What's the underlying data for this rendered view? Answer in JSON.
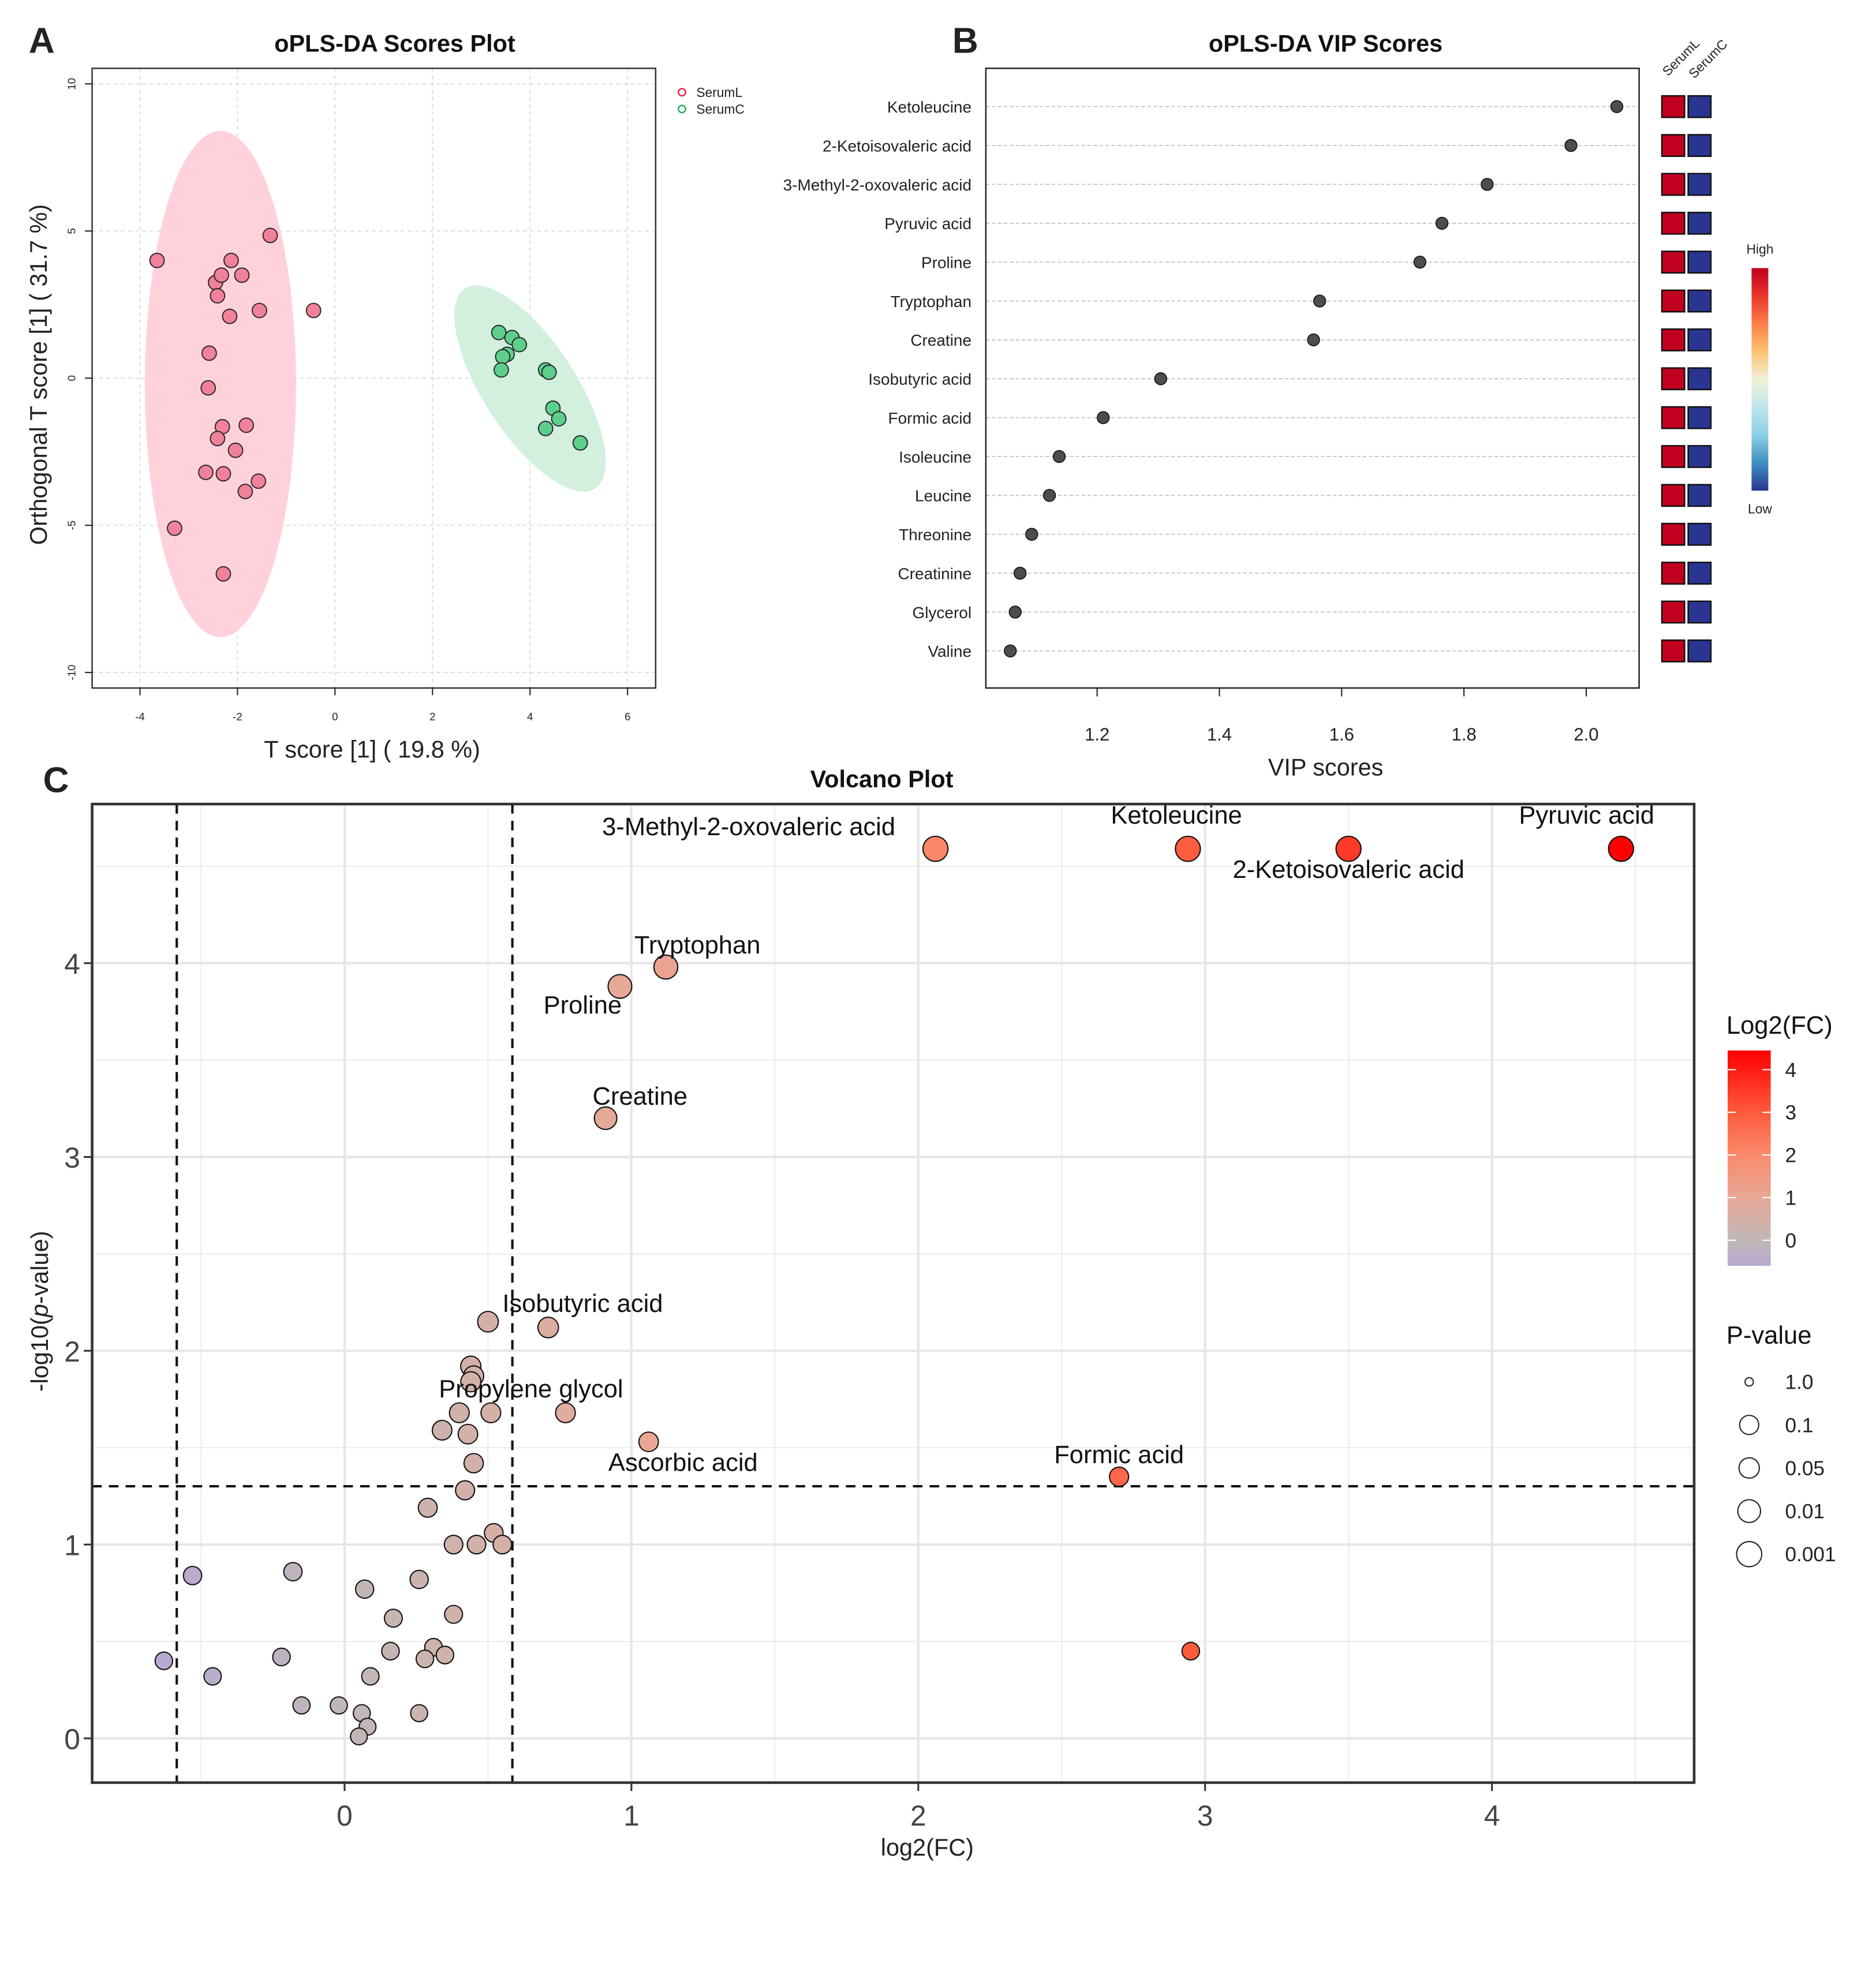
{
  "figure": {
    "panels": [
      "A",
      "B",
      "C"
    ]
  },
  "chart_data": [
    {
      "id": "scores",
      "panel": "A",
      "type": "scatter",
      "title": "oPLS-DA Scores Plot",
      "xlabel": "T score [1] ( 19.8 %)",
      "ylabel": "Orthogonal T score [1] ( 31.7 %)",
      "xlim": [
        -5.0,
        6.6
      ],
      "ylim": [
        -11.0,
        10.5
      ],
      "xticks": [
        -4,
        -2,
        0,
        2,
        4,
        6
      ],
      "yticks": [
        -10,
        -5,
        0,
        5,
        10
      ],
      "grid": true,
      "legend_position": "top-right-outside",
      "series": [
        {
          "name": "SerumL",
          "color": "#f0819a",
          "legend_color": "#e8274f",
          "ellipse_color": "#ffd1db",
          "ellipse": {
            "cx": -2.35,
            "cy": -0.2,
            "rx": 1.55,
            "ry": 8.6,
            "angle": 0
          },
          "points": [
            [
              -3.65,
              4.0
            ],
            [
              -2.13,
              4.0
            ],
            [
              -1.33,
              4.85
            ],
            [
              -2.45,
              3.25
            ],
            [
              -2.33,
              3.5
            ],
            [
              -1.91,
              3.5
            ],
            [
              -2.41,
              2.8
            ],
            [
              -2.16,
              2.1
            ],
            [
              -1.55,
              2.3
            ],
            [
              -0.44,
              2.3
            ],
            [
              -2.58,
              0.85
            ],
            [
              -2.6,
              -0.33
            ],
            [
              -2.31,
              -1.65
            ],
            [
              -1.82,
              -1.6
            ],
            [
              -2.41,
              -2.05
            ],
            [
              -2.04,
              -2.45
            ],
            [
              -2.65,
              -3.2
            ],
            [
              -2.29,
              -3.25
            ],
            [
              -1.57,
              -3.5
            ],
            [
              -1.84,
              -3.85
            ],
            [
              -3.29,
              -5.1
            ],
            [
              -2.29,
              -6.65
            ]
          ]
        },
        {
          "name": "SerumC",
          "color": "#5ccf8a",
          "legend_color": "#1fb25a",
          "ellipse_color": "#d2f0dd",
          "ellipse": {
            "cx": 4.0,
            "cy": -0.35,
            "rx": 0.95,
            "ry": 4.05,
            "angle": -33
          },
          "points": [
            [
              3.36,
              1.55
            ],
            [
              3.63,
              1.38
            ],
            [
              3.78,
              1.14
            ],
            [
              3.53,
              0.81
            ],
            [
              3.44,
              0.73
            ],
            [
              3.41,
              0.28
            ],
            [
              4.32,
              0.28
            ],
            [
              4.39,
              0.2
            ],
            [
              4.47,
              -1.02
            ],
            [
              4.59,
              -1.38
            ],
            [
              4.32,
              -1.71
            ],
            [
              5.03,
              -2.2
            ]
          ]
        }
      ]
    },
    {
      "id": "vip",
      "panel": "B",
      "type": "scatter",
      "title": "oPLS-DA VIP Scores",
      "xlabel": "VIP scores",
      "ylabel": "",
      "xlim": [
        1.015,
        2.083
      ],
      "xticks": [
        "1.2",
        "1.4",
        "1.6",
        "1.8",
        "2.0"
      ],
      "grid": "horizontal-dashed",
      "categories": [
        "Ketoleucine",
        "2-Ketoisovaleric acid",
        "3-Methyl-2-oxovaleric acid",
        "Pyruvic acid",
        "Proline",
        "Tryptophan",
        "Creatine",
        "Isobutyric acid",
        "Formic acid",
        "Isoleucine",
        "Leucine",
        "Threonine",
        "Creatinine",
        "Glycerol",
        "Valine"
      ],
      "values": [
        2.05,
        1.975,
        1.838,
        1.764,
        1.728,
        1.564,
        1.554,
        1.304,
        1.21,
        1.138,
        1.122,
        1.093,
        1.074,
        1.066,
        1.058
      ],
      "point_color": "#4d4d4d",
      "heatmap": {
        "columns": [
          "SerumL",
          "SerumC"
        ],
        "values": [
          [
            "High",
            "Low"
          ],
          [
            "High",
            "Low"
          ],
          [
            "High",
            "Low"
          ],
          [
            "High",
            "Low"
          ],
          [
            "High",
            "Low"
          ],
          [
            "High",
            "Low"
          ],
          [
            "High",
            "Low"
          ],
          [
            "High",
            "Low"
          ],
          [
            "High",
            "Low"
          ],
          [
            "High",
            "Low"
          ],
          [
            "High",
            "Low"
          ],
          [
            "High",
            "Low"
          ],
          [
            "High",
            "Low"
          ],
          [
            "High",
            "Low"
          ],
          [
            "High",
            "Low"
          ]
        ],
        "high_color": "#c10020",
        "low_color": "#2b3591"
      },
      "colorbar": {
        "high_label": "High",
        "low_label": "Low",
        "stops": [
          "#c10020",
          "#e8352a",
          "#fc7f48",
          "#fdc371",
          "#f2efd8",
          "#bfe6ef",
          "#8ecfe4",
          "#3f8fc4",
          "#2b3591"
        ]
      }
    },
    {
      "id": "volcano",
      "panel": "C",
      "type": "scatter",
      "title": "Volcano Plot",
      "xlabel": "log2(FC)",
      "ylabel": "-log10(p-value)",
      "ylabel_italic_part": "p",
      "xlim": [
        -0.88,
        4.7
      ],
      "ylim": [
        -0.23,
        4.82
      ],
      "xticks": [
        0,
        1,
        2,
        3,
        4
      ],
      "yticks": [
        0,
        1,
        2,
        3,
        4
      ],
      "grid": true,
      "thresholds": {
        "x": [
          -0.585,
          0.585
        ],
        "y": 1.301
      },
      "color_legend": {
        "title": "Log2(FC)",
        "ticks": [
          "4",
          "3",
          "2",
          "1",
          "0"
        ],
        "range": [
          -0.6,
          4.45
        ],
        "stops": [
          {
            "v": -0.6,
            "c": "#b9a8cf"
          },
          {
            "v": 0,
            "c": "#c0b8b8"
          },
          {
            "v": 1,
            "c": "#e8a896"
          },
          {
            "v": 2,
            "c": "#fa8a6c"
          },
          {
            "v": 3,
            "c": "#ff5a3c"
          },
          {
            "v": 4.45,
            "c": "#ff0000"
          }
        ]
      },
      "size_legend": {
        "title": "P-value",
        "labels": [
          "1.0",
          "0.1",
          "0.05",
          "0.01",
          "0.001"
        ]
      },
      "points": [
        {
          "x": 2.06,
          "y": 4.59,
          "label": "3-Methyl-2-oxovaleric acid",
          "lx": 1.92,
          "ly": 4.66,
          "anchor": "end"
        },
        {
          "x": 2.94,
          "y": 4.59,
          "label": "Ketoleucine",
          "lx": 2.9,
          "ly": 4.72,
          "anchor": "middle"
        },
        {
          "x": 3.5,
          "y": 4.59,
          "label": "2-Ketoisovaleric acid",
          "lx": 3.5,
          "ly": 4.44,
          "anchor": "middle"
        },
        {
          "x": 4.45,
          "y": 4.59,
          "label": "Pyruvic acid",
          "lx": 4.33,
          "ly": 4.72,
          "anchor": "middle"
        },
        {
          "x": 1.12,
          "y": 3.98,
          "label": "Tryptophan",
          "lx": 1.23,
          "ly": 4.05,
          "anchor": "middle"
        },
        {
          "x": 0.96,
          "y": 3.88,
          "label": "Proline",
          "lx": 0.83,
          "ly": 3.74,
          "anchor": "middle"
        },
        {
          "x": 0.91,
          "y": 3.2,
          "label": "Creatine",
          "lx": 1.03,
          "ly": 3.27,
          "anchor": "middle"
        },
        {
          "x": 0.5,
          "y": 2.15,
          "label": "Isobutyric acid",
          "lx": 0.83,
          "ly": 2.2,
          "anchor": "middle"
        },
        {
          "x": 0.71,
          "y": 2.12,
          "label": "",
          "lx": 0,
          "ly": 0,
          "anchor": "middle"
        },
        {
          "x": 0.44,
          "y": 1.92,
          "label": "",
          "lx": 0,
          "ly": 0,
          "anchor": "middle"
        },
        {
          "x": 0.45,
          "y": 1.87,
          "label": "",
          "lx": 0,
          "ly": 0,
          "anchor": "middle"
        },
        {
          "x": 0.44,
          "y": 1.84,
          "label": "",
          "lx": 0,
          "ly": 0,
          "anchor": "middle"
        },
        {
          "x": 0.4,
          "y": 1.68,
          "label": "Propylene glycol",
          "lx": 0.65,
          "ly": 1.76,
          "anchor": "middle"
        },
        {
          "x": 0.51,
          "y": 1.68,
          "label": "",
          "lx": 0,
          "ly": 0,
          "anchor": "middle"
        },
        {
          "x": 0.77,
          "y": 1.68,
          "label": "",
          "lx": 0,
          "ly": 0,
          "anchor": "middle"
        },
        {
          "x": 0.34,
          "y": 1.59,
          "label": "",
          "lx": 0,
          "ly": 0,
          "anchor": "middle"
        },
        {
          "x": 0.43,
          "y": 1.57,
          "label": "",
          "lx": 0,
          "ly": 0,
          "anchor": "middle"
        },
        {
          "x": 1.06,
          "y": 1.53,
          "label": "Ascorbic acid",
          "lx": 1.18,
          "ly": 1.38,
          "anchor": "middle"
        },
        {
          "x": 0.45,
          "y": 1.42,
          "label": "",
          "lx": 0,
          "ly": 0,
          "anchor": "middle"
        },
        {
          "x": 0.42,
          "y": 1.28,
          "label": "",
          "lx": 0,
          "ly": 0,
          "anchor": "middle"
        },
        {
          "x": 2.7,
          "y": 1.35,
          "label": "Formic acid",
          "lx": 2.7,
          "ly": 1.42,
          "anchor": "middle"
        },
        {
          "x": 0.29,
          "y": 1.19,
          "label": "",
          "lx": 0,
          "ly": 0,
          "anchor": "middle"
        },
        {
          "x": 0.52,
          "y": 1.06,
          "label": "",
          "lx": 0,
          "ly": 0,
          "anchor": "middle"
        },
        {
          "x": 0.38,
          "y": 1.0,
          "label": "",
          "lx": 0,
          "ly": 0,
          "anchor": "middle"
        },
        {
          "x": 0.46,
          "y": 1.0,
          "label": "",
          "lx": 0,
          "ly": 0,
          "anchor": "middle"
        },
        {
          "x": 0.55,
          "y": 1.0,
          "label": "",
          "lx": 0,
          "ly": 0,
          "anchor": "middle"
        },
        {
          "x": -0.53,
          "y": 0.84,
          "label": "",
          "lx": 0,
          "ly": 0,
          "anchor": "middle"
        },
        {
          "x": -0.18,
          "y": 0.86,
          "label": "",
          "lx": 0,
          "ly": 0,
          "anchor": "middle"
        },
        {
          "x": 0.07,
          "y": 0.77,
          "label": "",
          "lx": 0,
          "ly": 0,
          "anchor": "middle"
        },
        {
          "x": 0.26,
          "y": 0.82,
          "label": "",
          "lx": 0,
          "ly": 0,
          "anchor": "middle"
        },
        {
          "x": 0.38,
          "y": 0.64,
          "label": "",
          "lx": 0,
          "ly": 0,
          "anchor": "middle"
        },
        {
          "x": 0.17,
          "y": 0.62,
          "label": "",
          "lx": 0,
          "ly": 0,
          "anchor": "middle"
        },
        {
          "x": 0.31,
          "y": 0.47,
          "label": "",
          "lx": 0,
          "ly": 0,
          "anchor": "middle"
        },
        {
          "x": 0.16,
          "y": 0.45,
          "label": "",
          "lx": 0,
          "ly": 0,
          "anchor": "middle"
        },
        {
          "x": 0.35,
          "y": 0.43,
          "label": "",
          "lx": 0,
          "ly": 0,
          "anchor": "middle"
        },
        {
          "x": 0.28,
          "y": 0.41,
          "label": "",
          "lx": 0,
          "ly": 0,
          "anchor": "middle"
        },
        {
          "x": -0.63,
          "y": 0.4,
          "label": "",
          "lx": 0,
          "ly": 0,
          "anchor": "middle"
        },
        {
          "x": -0.22,
          "y": 0.42,
          "label": "",
          "lx": 0,
          "ly": 0,
          "anchor": "middle"
        },
        {
          "x": -0.46,
          "y": 0.32,
          "label": "",
          "lx": 0,
          "ly": 0,
          "anchor": "middle"
        },
        {
          "x": 0.09,
          "y": 0.32,
          "label": "",
          "lx": 0,
          "ly": 0,
          "anchor": "middle"
        },
        {
          "x": 2.95,
          "y": 0.45,
          "label": "",
          "lx": 0,
          "ly": 0,
          "anchor": "middle"
        },
        {
          "x": -0.15,
          "y": 0.17,
          "label": "",
          "lx": 0,
          "ly": 0,
          "anchor": "middle"
        },
        {
          "x": -0.02,
          "y": 0.17,
          "label": "",
          "lx": 0,
          "ly": 0,
          "anchor": "middle"
        },
        {
          "x": 0.06,
          "y": 0.13,
          "label": "",
          "lx": 0,
          "ly": 0,
          "anchor": "middle"
        },
        {
          "x": 0.26,
          "y": 0.13,
          "label": "",
          "lx": 0,
          "ly": 0,
          "anchor": "middle"
        },
        {
          "x": 0.08,
          "y": 0.06,
          "label": "",
          "lx": 0,
          "ly": 0,
          "anchor": "middle"
        },
        {
          "x": 0.05,
          "y": 0.01,
          "label": "",
          "lx": 0,
          "ly": 0,
          "anchor": "middle"
        }
      ]
    }
  ]
}
